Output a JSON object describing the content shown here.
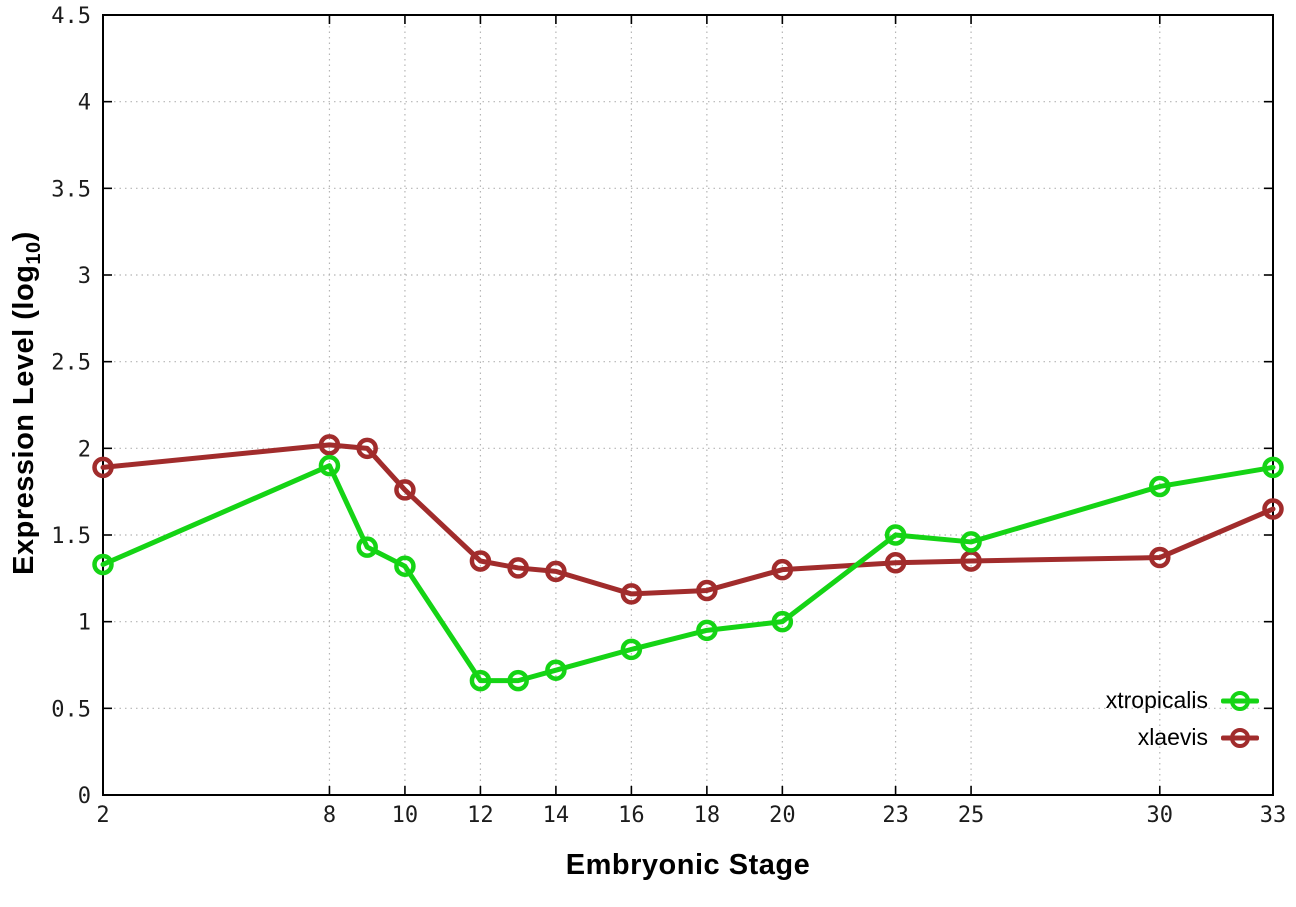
{
  "chart_data": {
    "type": "line",
    "xlabel": "Embryonic Stage",
    "ylabel_prefix": "Expression Level (log",
    "ylabel_sub": "10",
    "ylabel_suffix": ")",
    "x": [
      2,
      8,
      9,
      10,
      12,
      13,
      14,
      16,
      18,
      20,
      23,
      25,
      30,
      33
    ],
    "series": [
      {
        "name": "xtropicalis",
        "color": "#15d415",
        "marker": "open-circle",
        "values": [
          1.33,
          1.9,
          1.43,
          1.32,
          0.66,
          0.66,
          0.72,
          0.84,
          0.95,
          1.0,
          1.5,
          1.46,
          1.78,
          1.89
        ]
      },
      {
        "name": "xlaevis",
        "color": "#a12c2c",
        "marker": "open-circle",
        "values": [
          1.89,
          2.02,
          2.0,
          1.76,
          1.35,
          1.31,
          1.29,
          1.16,
          1.18,
          1.3,
          1.34,
          1.35,
          1.37,
          1.65
        ]
      }
    ],
    "xlim": [
      2,
      33
    ],
    "ylim": [
      0,
      4.5
    ],
    "xticks": [
      2,
      8,
      10,
      12,
      14,
      16,
      18,
      20,
      23,
      25,
      30,
      33
    ],
    "yticks": [
      0,
      0.5,
      1,
      1.5,
      2,
      2.5,
      3,
      3.5,
      4,
      4.5
    ],
    "grid": true,
    "grid_style": "dotted",
    "grid_color": "#b5b5b5",
    "axis_color": "#000000",
    "tick_label_color": "#1c1c1c",
    "legend_position": "bottom-right",
    "background": "#ffffff"
  }
}
